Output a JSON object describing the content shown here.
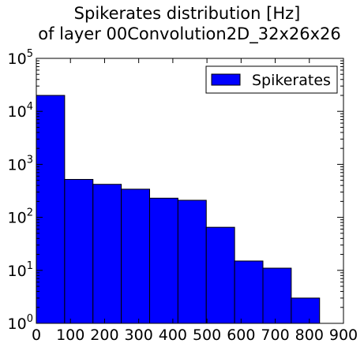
{
  "chart_data": {
    "type": "bar",
    "title": [
      "Spikerates distribution [Hz]",
      "of layer 00Convolution2D_32x26x26"
    ],
    "xlabel": "",
    "ylabel": "",
    "xlim": [
      0,
      900
    ],
    "ylim": [
      1,
      100000
    ],
    "yscale": "log",
    "grid": false,
    "legend_position": "top-right",
    "bar_color": "#0000ff",
    "edge_color": "#000000",
    "x_ticks": [
      "0",
      "100",
      "200",
      "300",
      "400",
      "500",
      "600",
      "700",
      "800",
      "900"
    ],
    "y_tick_exponents": [
      "0",
      "1",
      "2",
      "3",
      "4",
      "5"
    ],
    "series": [
      {
        "name": "Spikerates",
        "bins": [
          {
            "x0": 0,
            "x1": 83,
            "count": 20000
          },
          {
            "x0": 83,
            "x1": 166,
            "count": 520
          },
          {
            "x0": 166,
            "x1": 249,
            "count": 420
          },
          {
            "x0": 249,
            "x1": 332,
            "count": 340
          },
          {
            "x0": 332,
            "x1": 415,
            "count": 230
          },
          {
            "x0": 415,
            "x1": 498,
            "count": 210
          },
          {
            "x0": 498,
            "x1": 581,
            "count": 65
          },
          {
            "x0": 581,
            "x1": 664,
            "count": 15
          },
          {
            "x0": 664,
            "x1": 747,
            "count": 11
          },
          {
            "x0": 747,
            "x1": 830,
            "count": 3
          }
        ]
      }
    ]
  }
}
